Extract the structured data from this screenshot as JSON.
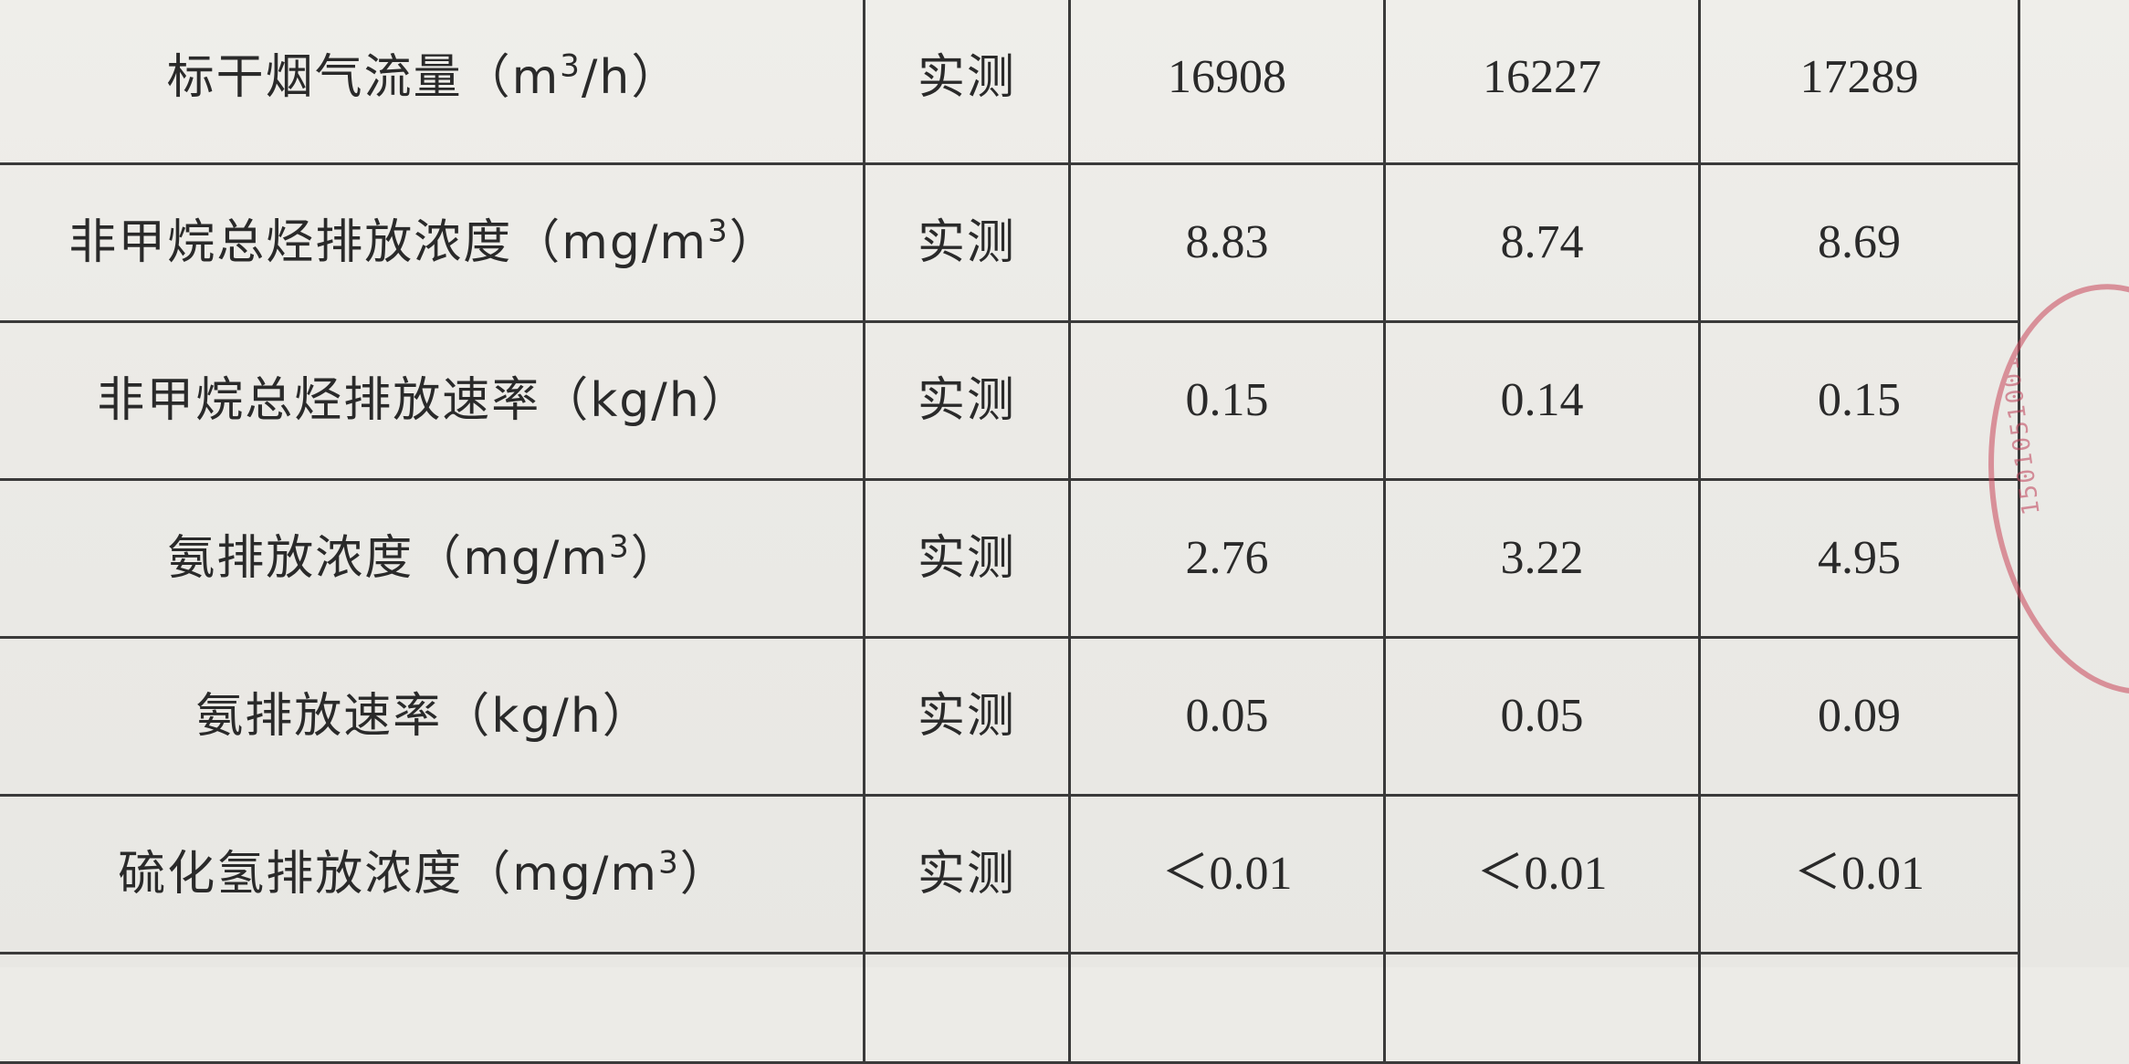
{
  "rows": [
    {
      "label": "标干烟气流量（m",
      "sup": "3",
      "label_tail": "/h）",
      "method": "实测",
      "values": [
        "16908",
        "16227",
        "17289"
      ]
    },
    {
      "label": "非甲烷总烃排放浓度（mg/m",
      "sup": "3",
      "label_tail": "）",
      "method": "实测",
      "values": [
        "8.83",
        "8.74",
        "8.69"
      ]
    },
    {
      "label": "非甲烷总烃排放速率（kg/h）",
      "sup": "",
      "label_tail": "",
      "method": "实测",
      "values": [
        "0.15",
        "0.14",
        "0.15"
      ]
    },
    {
      "label": "氨排放浓度（mg/m",
      "sup": "3",
      "label_tail": "）",
      "method": "实测",
      "values": [
        "2.76",
        "3.22",
        "4.95"
      ]
    },
    {
      "label": "氨排放速率（kg/h）",
      "sup": "",
      "label_tail": "",
      "method": "实测",
      "values": [
        "0.05",
        "0.05",
        "0.09"
      ]
    },
    {
      "label": "硫化氢排放浓度（mg/m",
      "sup": "3",
      "label_tail": "）",
      "method": "实测",
      "values": [
        "＜0.01",
        "＜0.01",
        "＜0.01"
      ]
    },
    {
      "label": "",
      "sup": "",
      "label_tail": "",
      "method": "",
      "values": [
        "",
        "",
        ""
      ]
    }
  ],
  "stamp": {
    "text": "15010510011"
  }
}
